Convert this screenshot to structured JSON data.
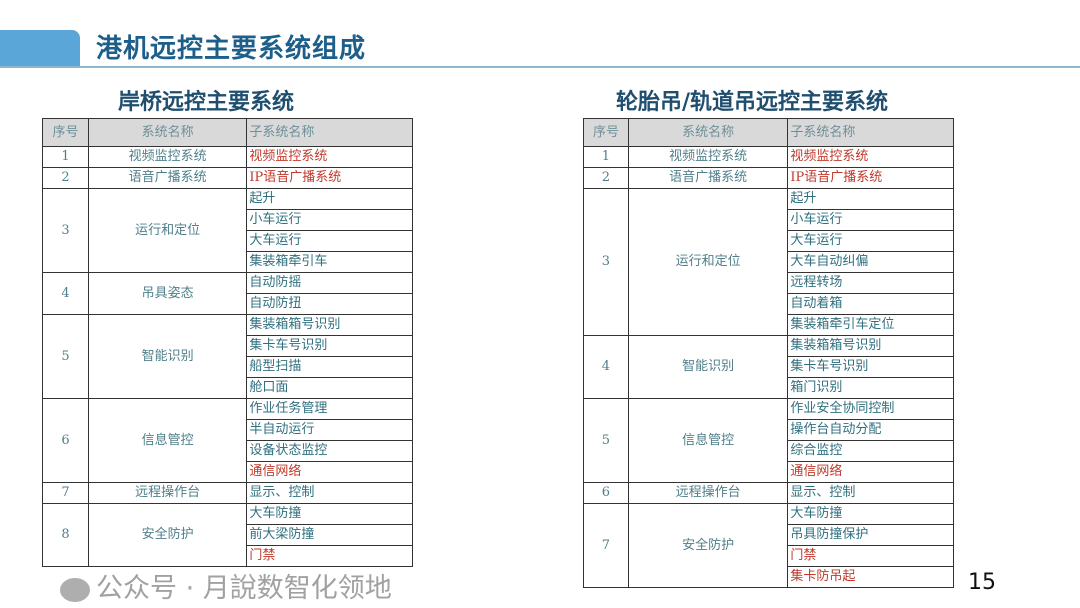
{
  "title": "港机远控主要系统组成",
  "colors": {
    "title": "#1d5f8a",
    "accent_bar": "#5aa6d8",
    "highlight_text": "#c0392b"
  },
  "headers": [
    "序号",
    "系统名称",
    "子系统名称"
  ],
  "left": {
    "title": "岸桥远控主要系统",
    "rows": [
      {
        "no": "1",
        "name": "视频监控系统",
        "subs": [
          {
            "t": "视频监控系统",
            "red": true
          }
        ]
      },
      {
        "no": "2",
        "name": "语音广播系统",
        "subs": [
          {
            "t": "IP语音广播系统",
            "red": true
          }
        ]
      },
      {
        "no": "3",
        "name": "运行和定位",
        "subs": [
          {
            "t": "起升"
          },
          {
            "t": "小车运行"
          },
          {
            "t": "大车运行"
          },
          {
            "t": "集装箱牵引车"
          }
        ]
      },
      {
        "no": "4",
        "name": "吊具姿态",
        "subs": [
          {
            "t": "自动防摇"
          },
          {
            "t": "自动防扭"
          }
        ]
      },
      {
        "no": "5",
        "name": "智能识别",
        "subs": [
          {
            "t": "集装箱箱号识别"
          },
          {
            "t": "集卡车号识别"
          },
          {
            "t": "船型扫描"
          },
          {
            "t": "舱口面"
          }
        ]
      },
      {
        "no": "6",
        "name": "信息管控",
        "subs": [
          {
            "t": "作业任务管理"
          },
          {
            "t": "半自动运行"
          },
          {
            "t": "设备状态监控"
          },
          {
            "t": "通信网络",
            "red": true
          }
        ]
      },
      {
        "no": "7",
        "name": "远程操作台",
        "subs": [
          {
            "t": "显示、控制"
          }
        ]
      },
      {
        "no": "8",
        "name": "安全防护",
        "subs": [
          {
            "t": "大车防撞"
          },
          {
            "t": "前大梁防撞"
          },
          {
            "t": "门禁",
            "red": true
          }
        ]
      }
    ]
  },
  "right": {
    "title": "轮胎吊/轨道吊远控主要系统",
    "rows": [
      {
        "no": "1",
        "name": "视频监控系统",
        "subs": [
          {
            "t": "视频监控系统",
            "red": true
          }
        ]
      },
      {
        "no": "2",
        "name": "语音广播系统",
        "subs": [
          {
            "t": "IP语音广播系统",
            "red": true
          }
        ]
      },
      {
        "no": "3",
        "name": "运行和定位",
        "subs": [
          {
            "t": "起升"
          },
          {
            "t": "小车运行"
          },
          {
            "t": "大车运行"
          },
          {
            "t": "大车自动纠偏"
          },
          {
            "t": "远程转场"
          },
          {
            "t": "自动着箱"
          },
          {
            "t": "集装箱牵引车定位"
          }
        ]
      },
      {
        "no": "4",
        "name": "智能识别",
        "subs": [
          {
            "t": "集装箱箱号识别"
          },
          {
            "t": "集卡车号识别"
          },
          {
            "t": "箱门识别"
          }
        ]
      },
      {
        "no": "5",
        "name": "信息管控",
        "subs": [
          {
            "t": "作业安全协同控制"
          },
          {
            "t": "操作台自动分配"
          },
          {
            "t": "综合监控"
          },
          {
            "t": "通信网络",
            "red": true
          }
        ]
      },
      {
        "no": "6",
        "name": "远程操作台",
        "subs": [
          {
            "t": "显示、控制"
          }
        ]
      },
      {
        "no": "7",
        "name": "安全防护",
        "subs": [
          {
            "t": "大车防撞"
          },
          {
            "t": "吊具防撞保护"
          },
          {
            "t": "门禁",
            "red": true
          },
          {
            "t": "集卡防吊起",
            "red": true
          }
        ]
      }
    ]
  },
  "watermark": "公众号 · 月說数智化领地",
  "page_number": "15"
}
